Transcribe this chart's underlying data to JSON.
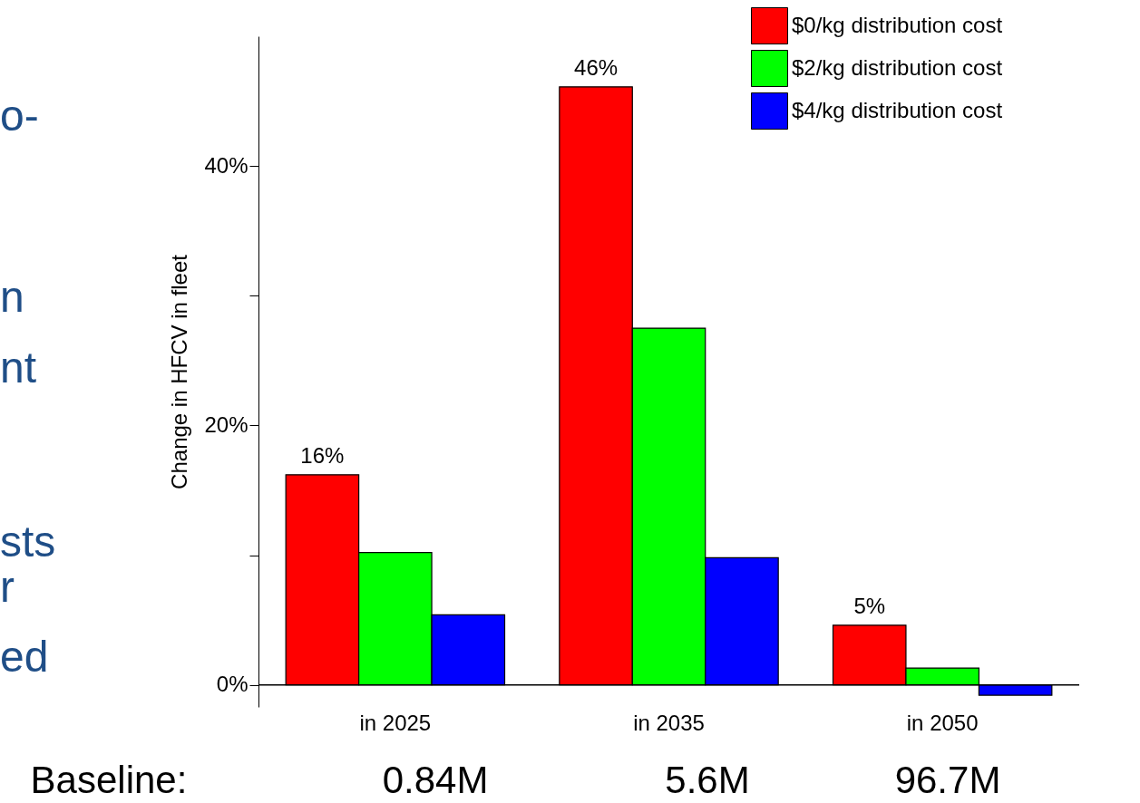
{
  "chart_data": {
    "type": "bar",
    "categories": [
      "in 2025",
      "in 2035",
      "in 2050"
    ],
    "ylabel": "Change in HFCV in fleet",
    "series": [
      {
        "name": "$0/kg distribution cost",
        "color": "#ff0000",
        "values": [
          16.2,
          46.1,
          4.6
        ],
        "value_labels": [
          "16%",
          "46%",
          "5%"
        ]
      },
      {
        "name": "$2/kg distribution cost",
        "color": "#00ff00",
        "values": [
          10.2,
          27.5,
          1.3
        ]
      },
      {
        "name": "$4/kg distribution cost",
        "color": "#0000ff",
        "values": [
          5.4,
          9.8,
          -0.8
        ]
      }
    ],
    "ylim": [
      -1.7,
      50
    ],
    "yticks": [
      {
        "value": 0,
        "label": "0%"
      },
      {
        "value": 10,
        "label": null
      },
      {
        "value": 20,
        "label": "20%"
      },
      {
        "value": 30,
        "label": null
      },
      {
        "value": 40,
        "label": "40%"
      }
    ],
    "legend": "top right",
    "grid": false,
    "annotations": [
      "o-",
      "n",
      "nt",
      "sts",
      "r",
      "ed",
      "Baseline:",
      "0.84M",
      "5.6M",
      "96.7M"
    ]
  }
}
